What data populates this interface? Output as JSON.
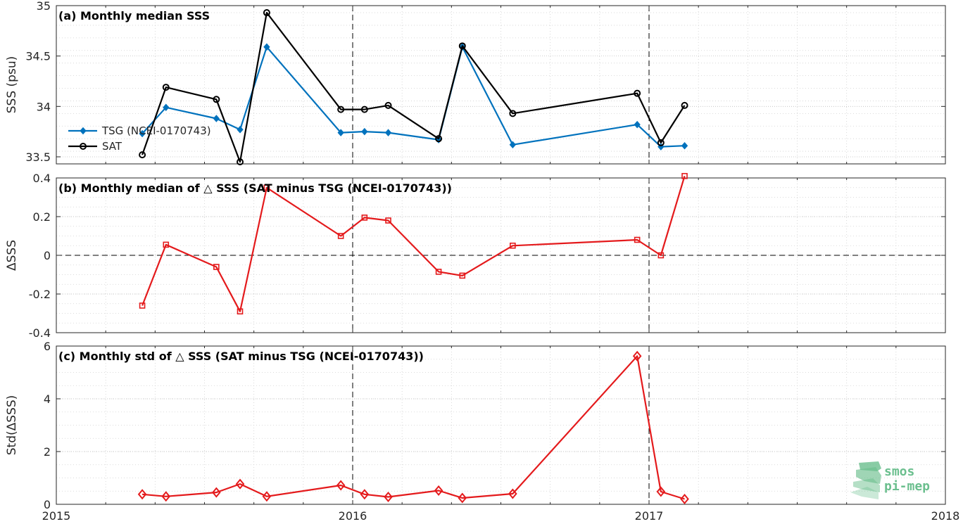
{
  "chart_data": [
    {
      "id": "a",
      "type": "line",
      "title": "(a) Monthly median SSS",
      "xlabel": "",
      "ylabel": "SSS (psu)",
      "xlim": [
        2015,
        2018
      ],
      "ylim": [
        33.43,
        35
      ],
      "yticks": [
        33.5,
        34,
        34.5,
        35
      ],
      "ytick_labels": [
        "33.5",
        "34",
        "34.5",
        "35"
      ],
      "grid": true,
      "legend_position": "middle-left",
      "series": [
        {
          "name": "TSG (NCEI-0170743)",
          "color": "#0072bd",
          "marker": "diamond",
          "x": [
            2015.29,
            2015.37,
            2015.54,
            2015.62,
            2015.71,
            2015.96,
            2016.04,
            2016.12,
            2016.29,
            2016.37,
            2016.54,
            2016.96,
            2017.04,
            2017.12
          ],
          "y": [
            33.73,
            33.99,
            33.88,
            33.77,
            34.59,
            33.74,
            33.75,
            33.74,
            33.67,
            34.59,
            33.62,
            33.82,
            33.6,
            33.61
          ]
        },
        {
          "name": "SAT",
          "color": "#000000",
          "marker": "circle",
          "x": [
            2015.29,
            2015.37,
            2015.54,
            2015.62,
            2015.71,
            2015.96,
            2016.04,
            2016.12,
            2016.29,
            2016.37,
            2016.54,
            2016.96,
            2017.04,
            2017.12
          ],
          "y": [
            33.52,
            34.19,
            34.07,
            33.45,
            34.93,
            33.97,
            33.97,
            34.01,
            33.68,
            34.6,
            33.93,
            34.13,
            33.64,
            34.01
          ]
        }
      ]
    },
    {
      "id": "b",
      "type": "line",
      "title": "(b) Monthly median of △ SSS (SAT minus TSG (NCEI-0170743))",
      "xlabel": "",
      "ylabel": "ΔSSS",
      "xlim": [
        2015,
        2018
      ],
      "ylim": [
        -0.4,
        0.4
      ],
      "yticks": [
        -0.4,
        -0.2,
        0,
        0.2,
        0.4
      ],
      "ytick_labels": [
        "-0.4",
        "-0.2",
        "0",
        "0.2",
        "0.4"
      ],
      "grid": true,
      "zero_line": true,
      "series": [
        {
          "color": "#e41a1c",
          "marker": "square",
          "x": [
            2015.29,
            2015.37,
            2015.54,
            2015.62,
            2015.71,
            2015.96,
            2016.04,
            2016.12,
            2016.29,
            2016.37,
            2016.54,
            2016.96,
            2017.04,
            2017.12
          ],
          "y": [
            -0.26,
            0.055,
            -0.06,
            -0.29,
            0.35,
            0.1,
            0.195,
            0.18,
            -0.085,
            -0.105,
            0.05,
            0.08,
            0.0,
            0.41
          ]
        }
      ]
    },
    {
      "id": "c",
      "type": "line",
      "title": "(c) Monthly std of △ SSS (SAT minus TSG (NCEI-0170743))",
      "xlabel": "",
      "ylabel": "Std(ΔSSS)",
      "xlim": [
        2015,
        2018
      ],
      "ylim": [
        0,
        6
      ],
      "yticks": [
        0,
        2,
        4,
        6
      ],
      "ytick_labels": [
        "0",
        "2",
        "4",
        "6"
      ],
      "xticks": [
        2015,
        2016,
        2017,
        2018
      ],
      "xtick_labels": [
        "2015",
        "2016",
        "2017",
        "2018"
      ],
      "grid": true,
      "series": [
        {
          "color": "#e41a1c",
          "marker": "diamond-open",
          "x": [
            2015.29,
            2015.37,
            2015.54,
            2015.62,
            2015.71,
            2015.96,
            2016.04,
            2016.12,
            2016.29,
            2016.37,
            2016.54,
            2016.96,
            2017.04,
            2017.12
          ],
          "y": [
            0.38,
            0.3,
            0.45,
            0.77,
            0.3,
            0.72,
            0.38,
            0.28,
            0.52,
            0.24,
            0.4,
            5.62,
            0.48,
            0.2
          ]
        }
      ]
    }
  ],
  "year_markers": [
    2016,
    2017
  ],
  "logo": {
    "line1": "smos",
    "line2": "pi-mep",
    "color": "#6bbf8e"
  }
}
